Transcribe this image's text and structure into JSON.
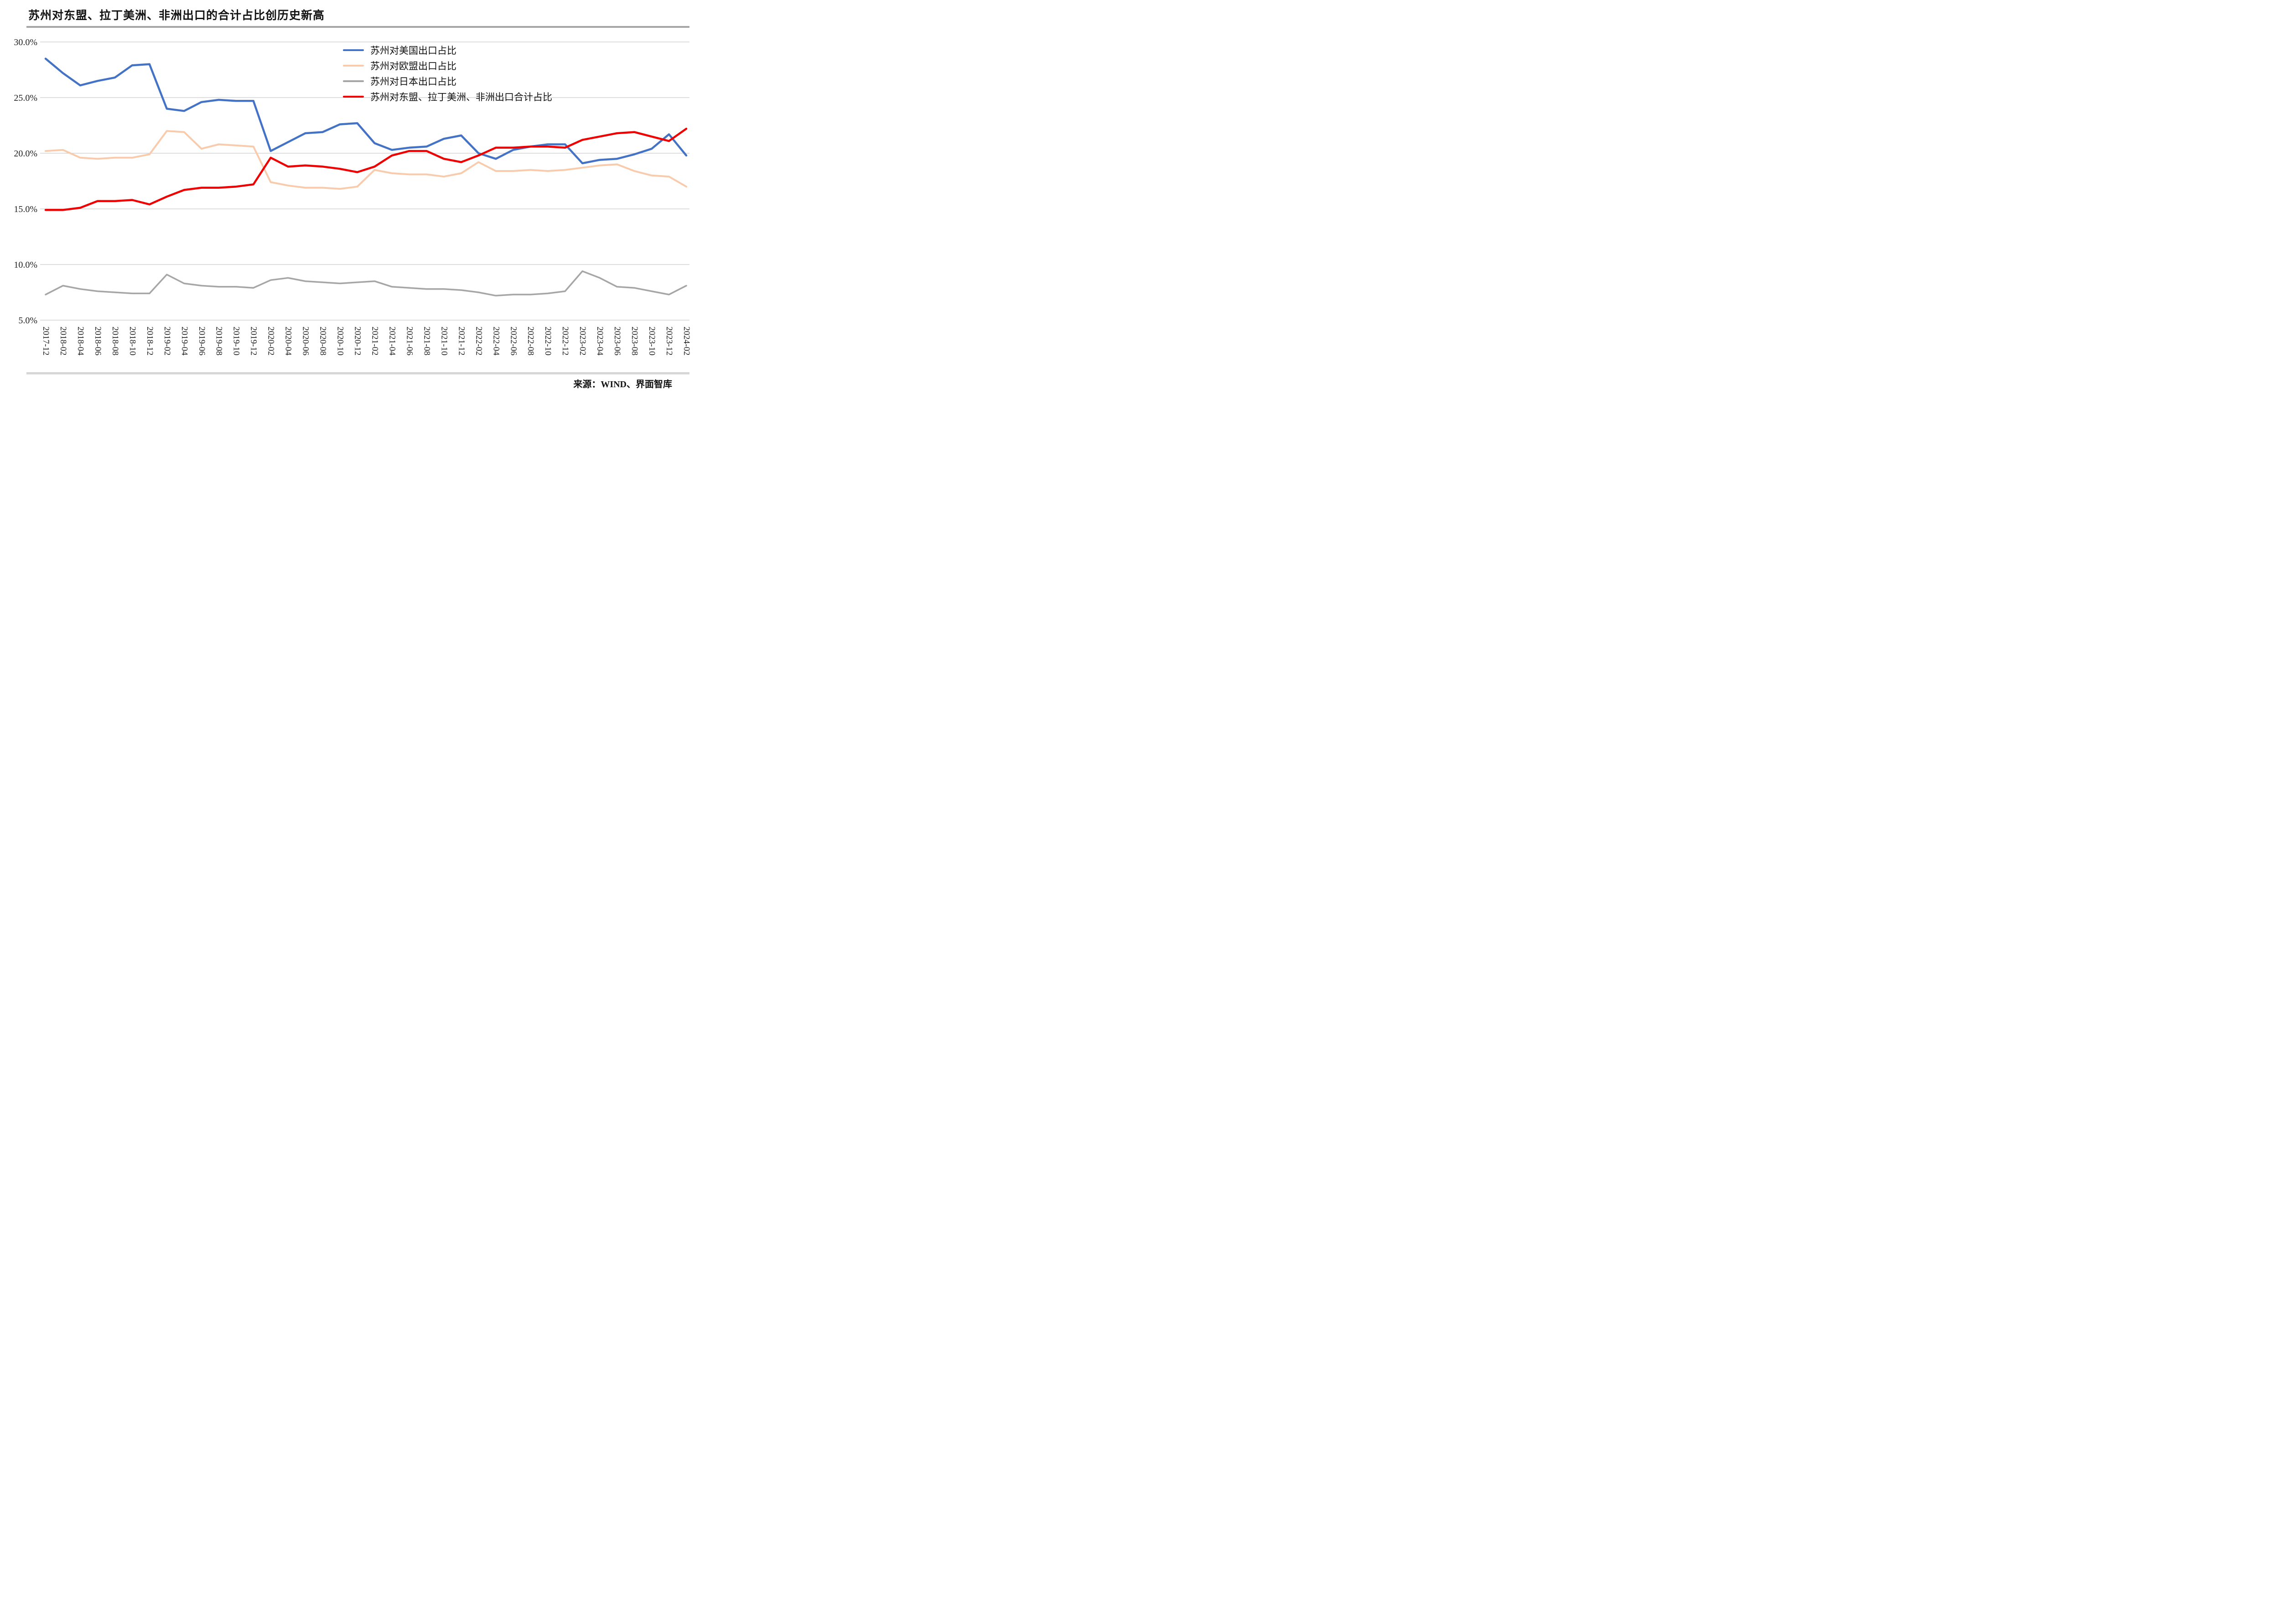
{
  "page": {
    "title": "苏州对东盟、拉丁美洲、非洲出口的合计占比创历史新高",
    "source": "来源：WIND、界面智库"
  },
  "colors": {
    "us_line": "#4472C4",
    "eu_line": "#F8CBAD",
    "japan_line": "#A6A6A6",
    "combined_line": "#EE0000",
    "gridline": "#c9c9c9",
    "axis_text": "#202020",
    "rule_top": "#a6a6a6",
    "rule_bottom": "#d7d7d7"
  },
  "chart_data": {
    "type": "line",
    "title": "苏州对东盟、拉丁美洲、非洲出口的合计占比创历史新高",
    "xlabel": "",
    "ylabel": "",
    "ylim": [
      5,
      30
    ],
    "grid": true,
    "legend_position": "upper-center",
    "ytick_values": [
      30,
      25,
      20,
      15,
      10,
      5
    ],
    "ytick_labels": [
      "30.0%",
      "25.0%",
      "20.0%",
      "15.0%",
      "10.0%",
      "5.0%"
    ],
    "x": [
      "2017-12",
      "2018-02",
      "2018-04",
      "2018-06",
      "2018-08",
      "2018-10",
      "2018-12",
      "2019-02",
      "2019-04",
      "2019-06",
      "2019-08",
      "2019-10",
      "2019-12",
      "2020-02",
      "2020-04",
      "2020-06",
      "2020-08",
      "2020-10",
      "2020-12",
      "2021-02",
      "2021-04",
      "2021-06",
      "2021-08",
      "2021-10",
      "2021-12",
      "2022-02",
      "2022-04",
      "2022-06",
      "2022-08",
      "2022-10",
      "2022-12",
      "2023-02",
      "2023-04",
      "2023-06",
      "2023-08",
      "2023-10",
      "2023-12",
      "2024-02"
    ],
    "series": [
      {
        "name": "苏州对美国出口占比",
        "color": "#4472C4",
        "width": 4.5,
        "values": [
          28.5,
          27.2,
          26.1,
          26.5,
          26.8,
          27.9,
          28.0,
          24.0,
          23.8,
          24.6,
          24.8,
          24.7,
          24.7,
          20.2,
          21.0,
          21.8,
          21.9,
          22.6,
          22.7,
          20.9,
          20.3,
          20.5,
          20.6,
          21.3,
          21.6,
          20.0,
          19.5,
          20.3,
          20.6,
          20.8,
          20.8,
          19.1,
          19.4,
          19.5,
          19.9,
          20.4,
          21.7,
          19.8
        ]
      },
      {
        "name": "苏州对欧盟出口占比",
        "color": "#F8CBAD",
        "width": 4,
        "values": [
          20.2,
          20.3,
          19.6,
          19.5,
          19.6,
          19.6,
          19.9,
          22.0,
          21.9,
          20.4,
          20.8,
          20.7,
          20.6,
          17.4,
          17.1,
          16.9,
          16.9,
          16.8,
          17.0,
          18.5,
          18.2,
          18.1,
          18.1,
          17.9,
          18.2,
          19.2,
          18.4,
          18.4,
          18.5,
          18.4,
          18.5,
          18.7,
          18.9,
          19.0,
          18.4,
          18.0,
          17.9,
          17.0
        ]
      },
      {
        "name": "苏州对日本出口占比",
        "color": "#A6A6A6",
        "width": 3.5,
        "values": [
          7.3,
          8.1,
          7.8,
          7.6,
          7.5,
          7.4,
          7.4,
          9.1,
          8.3,
          8.1,
          8.0,
          8.0,
          7.9,
          8.6,
          8.8,
          8.5,
          8.4,
          8.3,
          8.4,
          8.5,
          8.0,
          7.9,
          7.8,
          7.8,
          7.7,
          7.5,
          7.2,
          7.3,
          7.3,
          7.4,
          7.6,
          9.4,
          8.8,
          8.0,
          7.9,
          7.6,
          7.3,
          8.1
        ]
      },
      {
        "name": "苏州对东盟、拉丁美洲、非洲出口合计占比",
        "color": "#EE0000",
        "width": 4.5,
        "values": [
          14.9,
          14.9,
          15.1,
          15.7,
          15.7,
          15.8,
          15.4,
          16.1,
          16.7,
          16.9,
          16.9,
          17.0,
          17.2,
          19.6,
          18.8,
          18.9,
          18.8,
          18.6,
          18.3,
          18.8,
          19.8,
          20.2,
          20.2,
          19.5,
          19.2,
          19.8,
          20.5,
          20.5,
          20.6,
          20.6,
          20.5,
          21.2,
          21.5,
          21.8,
          21.9,
          21.5,
          21.1,
          22.2
        ]
      }
    ]
  }
}
